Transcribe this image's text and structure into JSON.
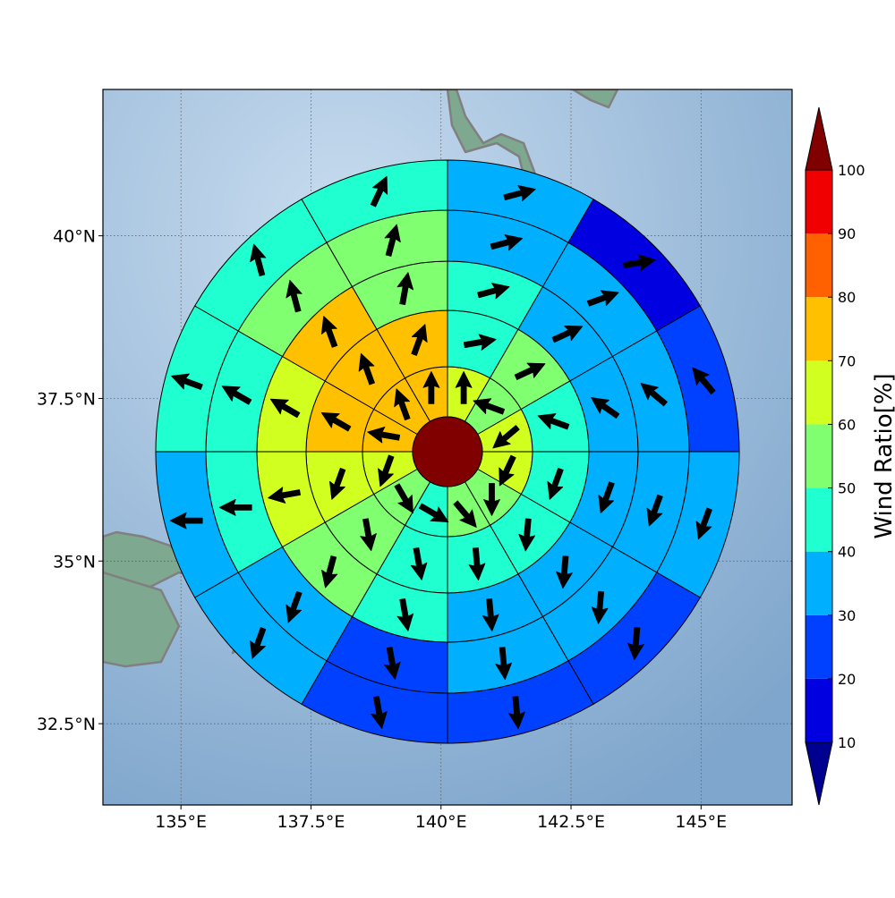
{
  "chart_data": {
    "type": "polar-sector-map",
    "center": {
      "lon": 140.2,
      "lat": 36.65
    },
    "extent": {
      "lon": [
        133.5,
        146.75
      ],
      "lat": [
        31.25,
        42.25
      ]
    },
    "x_ticks": [
      {
        "value": 135,
        "label": "135°E"
      },
      {
        "value": 137.5,
        "label": "137.5°E"
      },
      {
        "value": 140,
        "label": "140°E"
      },
      {
        "value": 142.5,
        "label": "142.5°E"
      },
      {
        "value": 145,
        "label": "145°E"
      }
    ],
    "y_ticks": [
      {
        "value": 32.5,
        "label": "32.5°N"
      },
      {
        "value": 35,
        "label": "35°N"
      },
      {
        "value": 37.5,
        "label": "37.5°N"
      },
      {
        "value": 40,
        "label": "40°N"
      }
    ],
    "grid": true,
    "sector_angles_deg": [
      0,
      30,
      60,
      90,
      120,
      150,
      180,
      210,
      240,
      270,
      300,
      330
    ],
    "center_disk_value": 100,
    "rings": [
      {
        "ring": 1,
        "values": [
          65,
          55,
          65,
          65,
          55,
          55,
          45,
          55,
          65,
          75,
          75,
          75
        ]
      },
      {
        "ring": 2,
        "values": [
          45,
          55,
          45,
          45,
          45,
          45,
          45,
          55,
          65,
          75,
          75,
          75
        ]
      },
      {
        "ring": 3,
        "values": [
          45,
          35,
          35,
          35,
          35,
          35,
          45,
          55,
          65,
          65,
          75,
          55
        ]
      },
      {
        "ring": 4,
        "values": [
          35,
          35,
          35,
          35,
          35,
          35,
          25,
          35,
          45,
          45,
          55,
          55
        ]
      },
      {
        "ring": 5,
        "values": [
          35,
          15,
          25,
          35,
          25,
          25,
          25,
          35,
          35,
          45,
          45,
          45
        ]
      }
    ],
    "arrows": [
      {
        "ring": 1,
        "dirs": [
          0,
          290,
          230,
          205,
          180,
          140,
          120,
          150,
          200,
          280,
          340,
          0
        ]
      },
      {
        "ring": 1.5,
        "dirs": [
          70,
          55,
          285,
          205,
          180,
          165,
          160,
          160,
          190,
          200,
          210,
          340
        ]
      },
      {
        "ring": 2,
        "dirs": [
          80,
          65,
          290,
          200,
          185,
          175,
          170,
          170,
          200,
          300,
          340,
          20
        ]
      },
      {
        "ring": 3,
        "dirs": [
          75,
          65,
          305,
          200,
          185,
          175,
          170,
          195,
          260,
          300,
          340,
          10
        ]
      },
      {
        "ring": 4,
        "dirs": [
          75,
          70,
          310,
          200,
          185,
          175,
          170,
          200,
          270,
          300,
          345,
          15
        ]
      },
      {
        "ring": 5,
        "dirs": [
          75,
          80,
          320,
          200,
          185,
          175,
          170,
          200,
          270,
          290,
          345,
          25
        ]
      }
    ],
    "colorbar": {
      "label": "Wind Ratio[%]",
      "ticks": [
        10,
        20,
        30,
        40,
        50,
        60,
        70,
        80,
        90,
        100
      ],
      "bins": [
        {
          "from": 10,
          "to": 20,
          "color": "#0000e0"
        },
        {
          "from": 20,
          "to": 30,
          "color": "#0040ff"
        },
        {
          "from": 30,
          "to": 40,
          "color": "#00b0ff"
        },
        {
          "from": 40,
          "to": 50,
          "color": "#20ffd0"
        },
        {
          "from": 50,
          "to": 60,
          "color": "#80ff70"
        },
        {
          "from": 60,
          "to": 70,
          "color": "#d0ff20"
        },
        {
          "from": 70,
          "to": 80,
          "color": "#ffc000"
        },
        {
          "from": 80,
          "to": 90,
          "color": "#ff6000"
        },
        {
          "from": 90,
          "to": 100,
          "color": "#f00000"
        }
      ],
      "under_color": "#000090",
      "over_color": "#800000"
    },
    "land_color": "#7fa890",
    "sea_color": "#8cb0d4",
    "coast_color": "#808080"
  }
}
